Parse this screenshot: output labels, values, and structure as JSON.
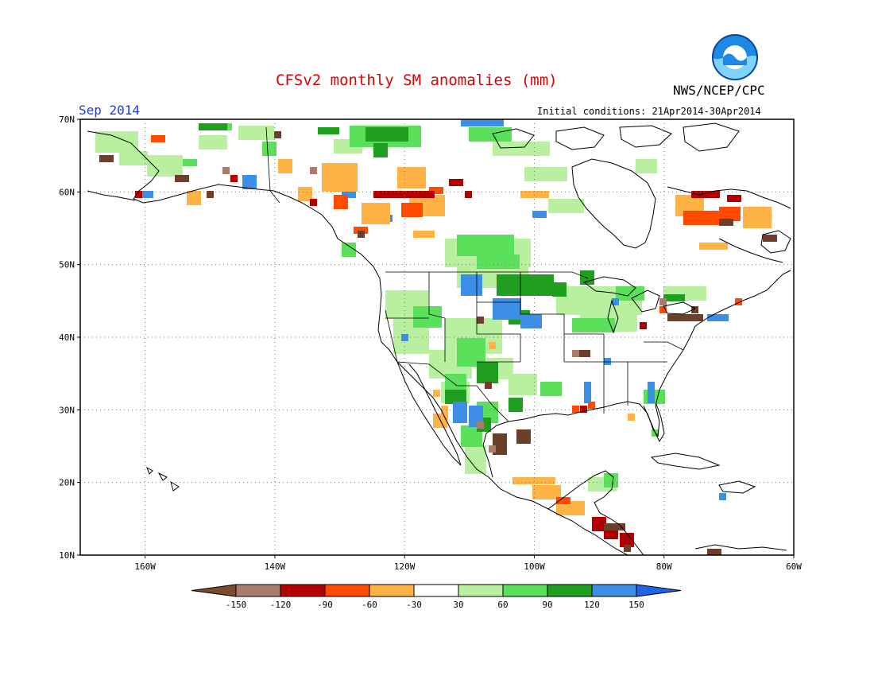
{
  "header": {
    "title": "CFSv2 monthly SM anomalies (mm)",
    "agency": "NWS/NCEP/CPC",
    "month": "Sep 2014",
    "initial_conditions": "Initial conditions: 21Apr2014-30Apr2014",
    "logo_text": "NOAA"
  },
  "axes": {
    "lat_labels": [
      "70N",
      "60N",
      "50N",
      "40N",
      "30N",
      "20N",
      "10N"
    ],
    "lon_labels": [
      "160W",
      "140W",
      "120W",
      "100W",
      "80W",
      "60W"
    ]
  },
  "colorbar": {
    "labels": [
      "-150",
      "-120",
      "-90",
      "-60",
      "-30",
      "30",
      "60",
      "90",
      "120",
      "150"
    ],
    "colors": [
      "#7b4b2a",
      "#a97c6c",
      "#b20000",
      "#ff4a00",
      "#ffb347",
      "#ffffff",
      "#b8f0a0",
      "#5ae05a",
      "#1f9e1f",
      "#3c8ee6",
      "#1e64e6"
    ]
  },
  "colors": {
    "title": "#dd0000",
    "month": "#1a3fd6",
    "dark_brown": "#6b3f2a",
    "light_brown": "#a97c6c",
    "dark_red": "#b20000",
    "red_orange": "#ff4a00",
    "orange": "#ffb347",
    "light_green": "#b8f0a0",
    "green": "#5ae05a",
    "dark_green": "#1f9e1f",
    "blue": "#3c8ee6"
  }
}
